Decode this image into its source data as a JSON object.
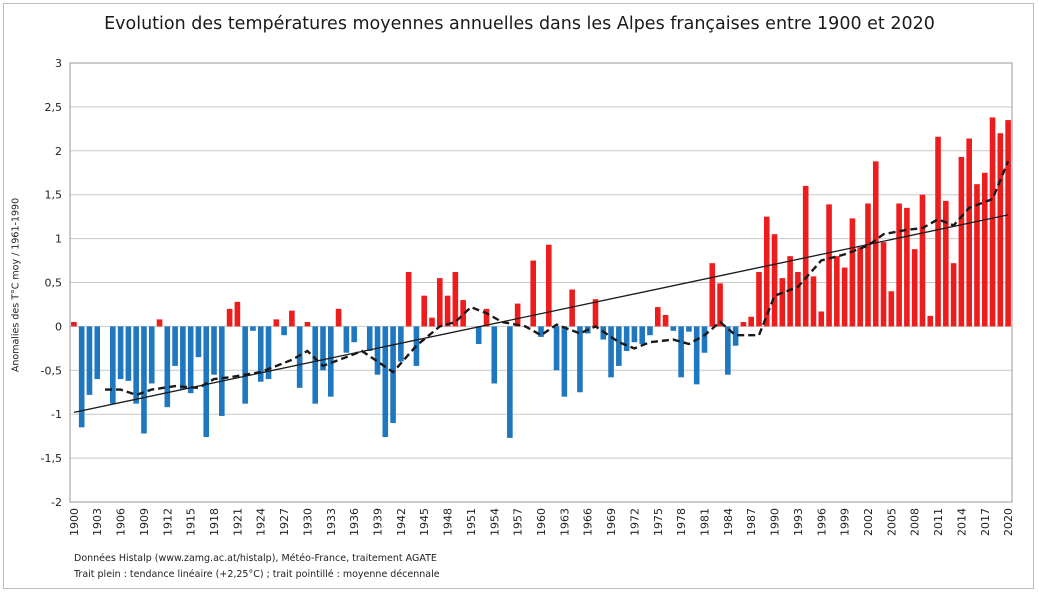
{
  "colors": {
    "negative": "#1f77bf",
    "positive": "#ee1d1d",
    "trend": "#1a1a1a",
    "decadal": "#1a1a1a",
    "grid": "#c8c8c8"
  },
  "footnotes": [
    "Données Histalp (www.zamg.ac.at/histalp), Météo-France, traitement AGATE",
    "Trait plein : tendance linéaire (+2,25°C) ; trait pointillé : moyenne décennale"
  ],
  "chart_data": {
    "type": "bar",
    "title": "Evolution des températures moyennes annuelles dans les Alpes françaises entre 1900 et 2020",
    "xlabel": "",
    "ylabel": "Anomalies des T°C moy / 1961-1990",
    "ylim": [
      -2,
      3
    ],
    "yticks": [
      3,
      2.5,
      2,
      1.5,
      1,
      0.5,
      0,
      -0.5,
      -1,
      -1.5,
      -2
    ],
    "ytick_labels": [
      "3",
      "2,5",
      "2",
      "1,5",
      "1",
      "0,5",
      "0",
      "-0,5",
      "-1",
      "-1,5",
      "-2"
    ],
    "xtick_labels": [
      "1900",
      "1903",
      "1906",
      "1909",
      "1912",
      "1915",
      "1918",
      "1921",
      "1924",
      "1927",
      "1930",
      "1933",
      "1936",
      "1939",
      "1942",
      "1945",
      "1948",
      "1951",
      "1954",
      "1957",
      "1960",
      "1963",
      "1966",
      "1969",
      "1972",
      "1975",
      "1978",
      "1981",
      "1984",
      "1987",
      "1990",
      "1993",
      "1996",
      "1999",
      "2002",
      "2005",
      "2008",
      "2011",
      "2014",
      "2017",
      "2020"
    ],
    "grid": true,
    "legend": "none",
    "x_start": 1900,
    "x_end": 2020,
    "values": [
      0.05,
      -1.15,
      -0.78,
      -0.6,
      0.0,
      -0.88,
      -0.6,
      -0.62,
      -0.88,
      -1.22,
      -0.65,
      0.08,
      -0.92,
      -0.45,
      -0.72,
      -0.76,
      -0.35,
      -1.26,
      -0.55,
      -1.02,
      0.2,
      0.28,
      -0.88,
      -0.05,
      -0.63,
      -0.6,
      0.08,
      -0.1,
      0.18,
      -0.7,
      0.05,
      -0.88,
      -0.5,
      -0.8,
      0.2,
      -0.3,
      -0.18,
      0.0,
      -0.28,
      -0.55,
      -1.26,
      -1.1,
      -0.4,
      0.62,
      -0.45,
      0.35,
      0.1,
      0.55,
      0.35,
      0.62,
      0.3,
      0.0,
      -0.2,
      0.2,
      -0.65,
      0.0,
      -1.27,
      0.26,
      0.0,
      0.75,
      -0.12,
      0.93,
      -0.5,
      -0.8,
      0.42,
      -0.75,
      -0.08,
      0.31,
      -0.15,
      -0.58,
      -0.45,
      -0.28,
      -0.18,
      -0.2,
      -0.1,
      0.22,
      0.13,
      -0.05,
      -0.58,
      -0.06,
      -0.66,
      -0.3,
      0.72,
      0.49,
      -0.55,
      -0.22,
      0.05,
      0.11,
      0.62,
      1.25,
      1.05,
      0.55,
      0.8,
      0.62,
      1.6,
      0.57,
      0.17,
      1.39,
      0.8,
      0.67,
      1.23,
      0.9,
      1.4,
      1.88,
      0.96,
      0.4,
      1.4,
      1.35,
      0.88,
      1.5,
      0.12,
      2.16,
      1.43,
      0.72,
      1.93,
      2.14,
      1.62,
      1.75,
      2.38,
      2.2,
      2.35
    ],
    "series": [
      {
        "type": "line",
        "style": "solid",
        "points": [
          [
            1900,
            -0.98
          ],
          [
            2020,
            1.27
          ]
        ]
      },
      {
        "type": "line",
        "style": "dashed",
        "points": [
          [
            1904,
            -0.72
          ],
          [
            1906,
            -0.72
          ],
          [
            1908,
            -0.78
          ],
          [
            1910,
            -0.72
          ],
          [
            1913,
            -0.68
          ],
          [
            1916,
            -0.7
          ],
          [
            1918,
            -0.6
          ],
          [
            1920,
            -0.58
          ],
          [
            1924,
            -0.52
          ],
          [
            1928,
            -0.38
          ],
          [
            1930,
            -0.28
          ],
          [
            1932,
            -0.45
          ],
          [
            1935,
            -0.35
          ],
          [
            1937,
            -0.28
          ],
          [
            1939,
            -0.4
          ],
          [
            1941,
            -0.52
          ],
          [
            1944,
            -0.22
          ],
          [
            1947,
            0.0
          ],
          [
            1949,
            0.05
          ],
          [
            1951,
            0.22
          ],
          [
            1953,
            0.15
          ],
          [
            1955,
            0.05
          ],
          [
            1958,
            0.0
          ],
          [
            1960,
            -0.1
          ],
          [
            1962,
            0.02
          ],
          [
            1965,
            -0.08
          ],
          [
            1967,
            0.0
          ],
          [
            1970,
            -0.18
          ],
          [
            1972,
            -0.25
          ],
          [
            1974,
            -0.18
          ],
          [
            1977,
            -0.15
          ],
          [
            1979,
            -0.2
          ],
          [
            1981,
            -0.1
          ],
          [
            1983,
            0.05
          ],
          [
            1985,
            -0.1
          ],
          [
            1988,
            -0.1
          ],
          [
            1990,
            0.35
          ],
          [
            1993,
            0.45
          ],
          [
            1996,
            0.75
          ],
          [
            1999,
            0.82
          ],
          [
            2002,
            0.92
          ],
          [
            2004,
            1.05
          ],
          [
            2007,
            1.1
          ],
          [
            2009,
            1.12
          ],
          [
            2011,
            1.22
          ],
          [
            2013,
            1.15
          ],
          [
            2015,
            1.35
          ],
          [
            2018,
            1.45
          ],
          [
            2020,
            1.88
          ]
        ]
      }
    ]
  }
}
